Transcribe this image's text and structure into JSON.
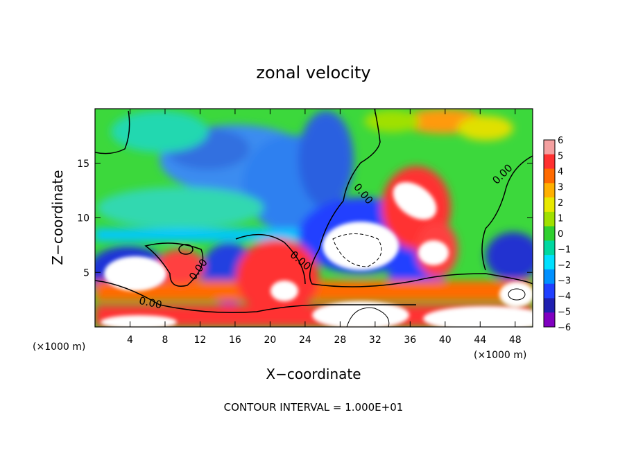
{
  "chart_data": {
    "type": "heatmap",
    "title": "zonal velocity",
    "xlabel": "X−coordinate",
    "ylabel": "Z−coordinate",
    "x_unit": "(×1000 m)",
    "y_unit": "(×1000 m)",
    "xlim": [
      0,
      50
    ],
    "ylim": [
      0,
      20
    ],
    "x_ticks": [
      4,
      8,
      12,
      16,
      20,
      24,
      28,
      32,
      36,
      40,
      44,
      48
    ],
    "y_ticks": [
      5,
      10,
      15
    ],
    "footnote": "CONTOUR INTERVAL = 1.000E+01",
    "contour_labels": [
      "0.00",
      "0.00",
      "0.00",
      "0.00",
      "0.00"
    ],
    "colorbar": {
      "min": -6,
      "max": 6,
      "tick_labels": [
        "6",
        "5",
        "4",
        "3",
        "2",
        "1",
        "0",
        "−1",
        "−2",
        "−3",
        "−4",
        "−5",
        "−6"
      ],
      "colors": [
        "#f4a0a0",
        "#ff3030",
        "#ff6a00",
        "#ffb000",
        "#e8e800",
        "#a0e000",
        "#30d030",
        "#00d8a0",
        "#00e0ff",
        "#0090ff",
        "#2040ff",
        "#2020b0",
        "#8000c0"
      ]
    }
  }
}
